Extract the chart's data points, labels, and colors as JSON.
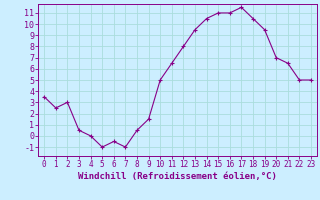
{
  "hours": [
    0,
    1,
    2,
    3,
    4,
    5,
    6,
    7,
    8,
    9,
    10,
    11,
    12,
    13,
    14,
    15,
    16,
    17,
    18,
    19,
    20,
    21,
    22,
    23
  ],
  "values": [
    3.5,
    2.5,
    3.0,
    0.5,
    0.0,
    -1.0,
    -0.5,
    -1.0,
    0.5,
    1.5,
    5.0,
    6.5,
    8.0,
    9.5,
    10.5,
    11.0,
    11.0,
    11.5,
    10.5,
    9.5,
    7.0,
    6.5,
    5.0,
    5.0
  ],
  "line_color": "#880088",
  "marker": "+",
  "marker_size": 3,
  "bg_color": "#cceeff",
  "grid_color": "#aadddd",
  "xlabel": "Windchill (Refroidissement éolien,°C)",
  "ylabel_ticks": [
    -1,
    0,
    1,
    2,
    3,
    4,
    5,
    6,
    7,
    8,
    9,
    10,
    11
  ],
  "ylim": [
    -1.8,
    11.8
  ],
  "xlim": [
    -0.5,
    23.5
  ],
  "tick_color": "#880088",
  "label_color": "#880088",
  "xlabel_fontsize": 6.5,
  "ytick_fontsize": 6.0,
  "xtick_fontsize": 5.5
}
